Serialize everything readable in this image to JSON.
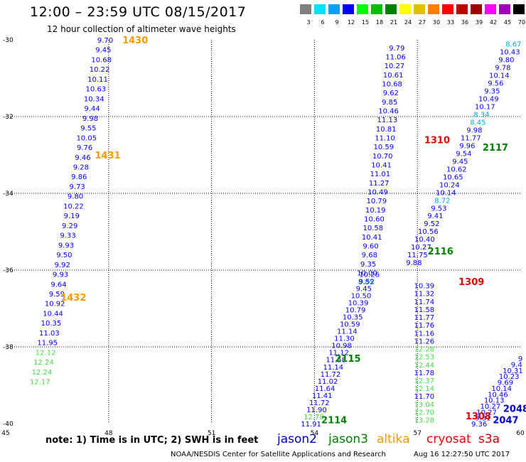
{
  "header": {
    "title": "12:00 – 23:59 UTC 08/15/2017",
    "subtitle": "12 hour collection of altimeter wave heights"
  },
  "colorbar": {
    "unit": "(ft)",
    "labels": [
      "3",
      "6",
      "9",
      "12",
      "15",
      "18",
      "21",
      "24",
      "27",
      "30",
      "33",
      "36",
      "39",
      "42",
      "45",
      "70"
    ],
    "colors": [
      "#808080",
      "#00e0ff",
      "#00a0ff",
      "#0000ff",
      "#00ff00",
      "#00c000",
      "#008000",
      "#ffff00",
      "#e0c000",
      "#ff8000",
      "#ff0000",
      "#c00000",
      "#a00000",
      "#ff00ff",
      "#a000c0",
      "#000000"
    ]
  },
  "footer": {
    "note": "note: 1) Time is in UTC; 2) SWH is in feet",
    "credit": "NOAA/NESDIS Center for Satellite Applications and Research",
    "stamp": "Aug 16 12:27:50 UTC 2017"
  },
  "legend": [
    {
      "name": "jason2",
      "color": "#0000cc"
    },
    {
      "name": "jason3",
      "color": "#008000"
    },
    {
      "name": "altika",
      "color": "#ff9900"
    },
    {
      "name": "cryosat",
      "color": "#ff0000"
    },
    {
      "name": "s3a",
      "color": "#cc0000"
    }
  ],
  "chart_data": {
    "type": "scatter",
    "title": "12:00 – 23:59 UTC 08/15/2017",
    "subtitle": "12 hour collection of altimeter wave heights",
    "xlim": [
      45,
      60
    ],
    "ylim": [
      -40,
      -30
    ],
    "x_ticks": [
      45,
      48,
      51,
      54,
      57,
      60
    ],
    "y_ticks": [
      -30,
      -32,
      -34,
      -36,
      -38,
      -40
    ],
    "grid": true,
    "units": "ft",
    "tracks": [
      {
        "satellite": "altika",
        "start": [
          47.9,
          -30.0
        ],
        "end": [
          46.0,
          -38.9
        ],
        "values": [
          "9.70",
          "9.45",
          "10.68",
          "10.22",
          "10.11",
          "10.63",
          "10.34",
          "9.44",
          "9.98",
          "9.55",
          "10.05",
          "9.76",
          "9.46",
          "9.28",
          "9.86",
          "9.73",
          "9.80",
          "10.22",
          "9.19",
          "9.29",
          "9.33",
          "9.93",
          "9.50",
          "9.92",
          "9.93",
          "9.64",
          "9.59",
          "10.92",
          "10.44",
          "10.35",
          "11.03",
          "11.95",
          "12.12",
          "12.24",
          "12.24",
          "12.17"
        ]
      },
      {
        "satellite": "jason2",
        "start": [
          56.4,
          -30.2
        ],
        "end": [
          55.5,
          -36.3
        ],
        "values": [
          "9.79",
          "11.06",
          "10.27",
          "10.61",
          "10.68",
          "9.62",
          "9.85",
          "10.46",
          "11.13",
          "10.81",
          "11.10",
          "10.59",
          "10.70",
          "10.41",
          "11.01",
          "11.27",
          "10.49",
          "10.79",
          "10.19",
          "10.60",
          "10.58",
          "10.41",
          "9.60",
          "9.68",
          "9.35",
          "10.00",
          "8.85"
        ]
      },
      {
        "satellite": "jason2",
        "start": [
          59.8,
          -30.1
        ],
        "end": [
          56.9,
          -35.8
        ],
        "values": [
          "8.67",
          "10.43",
          "9.80",
          "9.78",
          "10.14",
          "9.56",
          "9.35",
          "10.49",
          "10.17",
          "8.34",
          "8.45",
          "9.98",
          "11.77",
          "9.96",
          "9.54",
          "9.45",
          "10.62",
          "10.65",
          "10.24",
          "10.14",
          "8.72",
          "9.53",
          "9.41",
          "9.52",
          "10.56",
          "10.40",
          "10.27",
          "11.75",
          "9.88"
        ]
      },
      {
        "satellite": "jason2",
        "start": [
          55.6,
          -36.1
        ],
        "end": [
          53.9,
          -40.0
        ],
        "values": [
          "10.26",
          "9.52",
          "9.45",
          "10.50",
          "10.39",
          "10.79",
          "10.35",
          "10.59",
          "11.14",
          "11.30",
          "10.98",
          "11.12",
          "11.58",
          "11.14",
          "11.72",
          "11.02",
          "11.64",
          "11.41",
          "11.72",
          "11.90",
          "12.78",
          "11.91"
        ]
      },
      {
        "satellite": "jason2",
        "start": [
          57.2,
          -36.4
        ],
        "end": [
          57.2,
          -39.9
        ],
        "values": [
          "10.39",
          "11.32",
          "11.74",
          "11.58",
          "11.77",
          "11.76",
          "11.16",
          "11.26",
          "12.28",
          "12.53",
          "12.44",
          "11.78",
          "12.37",
          "12.14",
          "11.70",
          "13.04",
          "12.70",
          "13.28"
        ]
      },
      {
        "satellite": "jason2",
        "start": [
          60.0,
          -38.3
        ],
        "end": [
          58.8,
          -40.0
        ],
        "values": [
          "9",
          "9.4",
          "10.31",
          "10.23",
          "9.69",
          "10.14",
          "10.46",
          "10.13",
          "10.27",
          "10.27",
          "9.31",
          "9.36"
        ]
      }
    ],
    "pass_labels": [
      {
        "label": "1430",
        "satellite": "altika",
        "x": 48.4,
        "y": -30.0
      },
      {
        "label": "1431",
        "satellite": "altika",
        "x": 47.6,
        "y": -33.0
      },
      {
        "label": "1432",
        "satellite": "altika",
        "x": 46.6,
        "y": -36.7
      },
      {
        "label": "1310",
        "satellite": "cryosat",
        "x": 57.2,
        "y": -32.6
      },
      {
        "label": "1309",
        "satellite": "cryosat",
        "x": 58.2,
        "y": -36.3
      },
      {
        "label": "1308",
        "satellite": "cryosat",
        "x": 58.4,
        "y": -39.8
      },
      {
        "label": "2117",
        "satellite": "jason3",
        "x": 58.9,
        "y": -32.8
      },
      {
        "label": "2116",
        "satellite": "jason3",
        "x": 57.3,
        "y": -35.5
      },
      {
        "label": "2115",
        "satellite": "jason3",
        "x": 54.6,
        "y": -38.3
      },
      {
        "label": "2114",
        "satellite": "jason3",
        "x": 54.2,
        "y": -39.9
      },
      {
        "label": "2048",
        "satellite": "jason2",
        "x": 59.5,
        "y": -39.6
      },
      {
        "label": "2047",
        "satellite": "jason2",
        "x": 59.2,
        "y": -39.9
      }
    ]
  }
}
